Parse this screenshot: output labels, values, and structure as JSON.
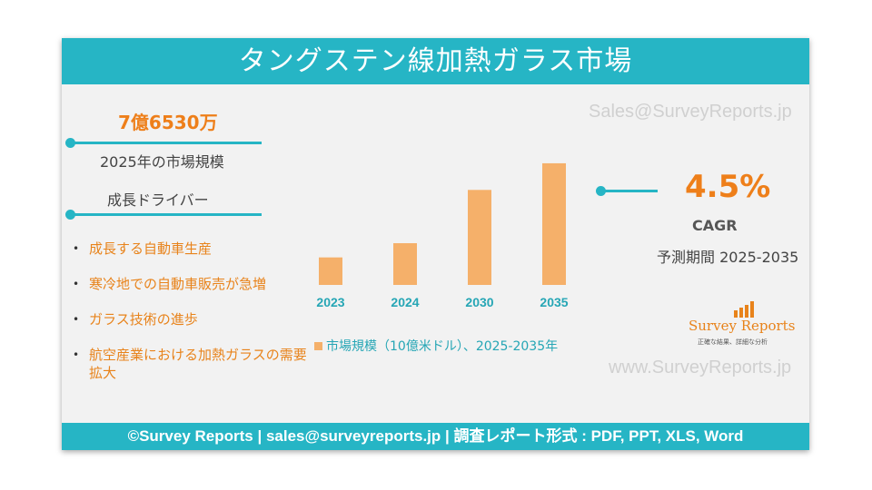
{
  "title": "タングステン線加熱ガラス市場",
  "watermark_top": "Sales@SurveyReports.jp",
  "watermark_bottom": "www.SurveyReports.jp",
  "market_size": {
    "value": "7億6530万",
    "label": "2025年の市場規模"
  },
  "drivers_heading": "成長ドライバー",
  "drivers": [
    "成長する自動車生産",
    "寒冷地での自動車販売が急増",
    "ガラス技術の進歩",
    "航空産業における加熱ガラスの需要拡大"
  ],
  "cagr": {
    "value": "4.5%",
    "label": "CAGR",
    "period": "予測期間 2025-2035"
  },
  "logo": {
    "name": "Survey Reports",
    "tagline": "正確な結果、詳細な分析"
  },
  "footer": "©Survey Reports | sales@surveyreports.jp | 調査レポート形式 : PDF, PPT, XLS, Word",
  "colors": {
    "accent": "#26b5c5",
    "highlight": "#ee7f1a",
    "bar": "#f5b06a"
  },
  "chart_data": {
    "type": "bar",
    "categories": [
      "2023",
      "2024",
      "2030",
      "2035"
    ],
    "values": [
      0.31,
      0.47,
      1.07,
      1.37
    ],
    "legend": "市場規模（10億米ドル）、2025-2035年",
    "ylim": [
      0,
      1.4
    ],
    "grid": false
  }
}
